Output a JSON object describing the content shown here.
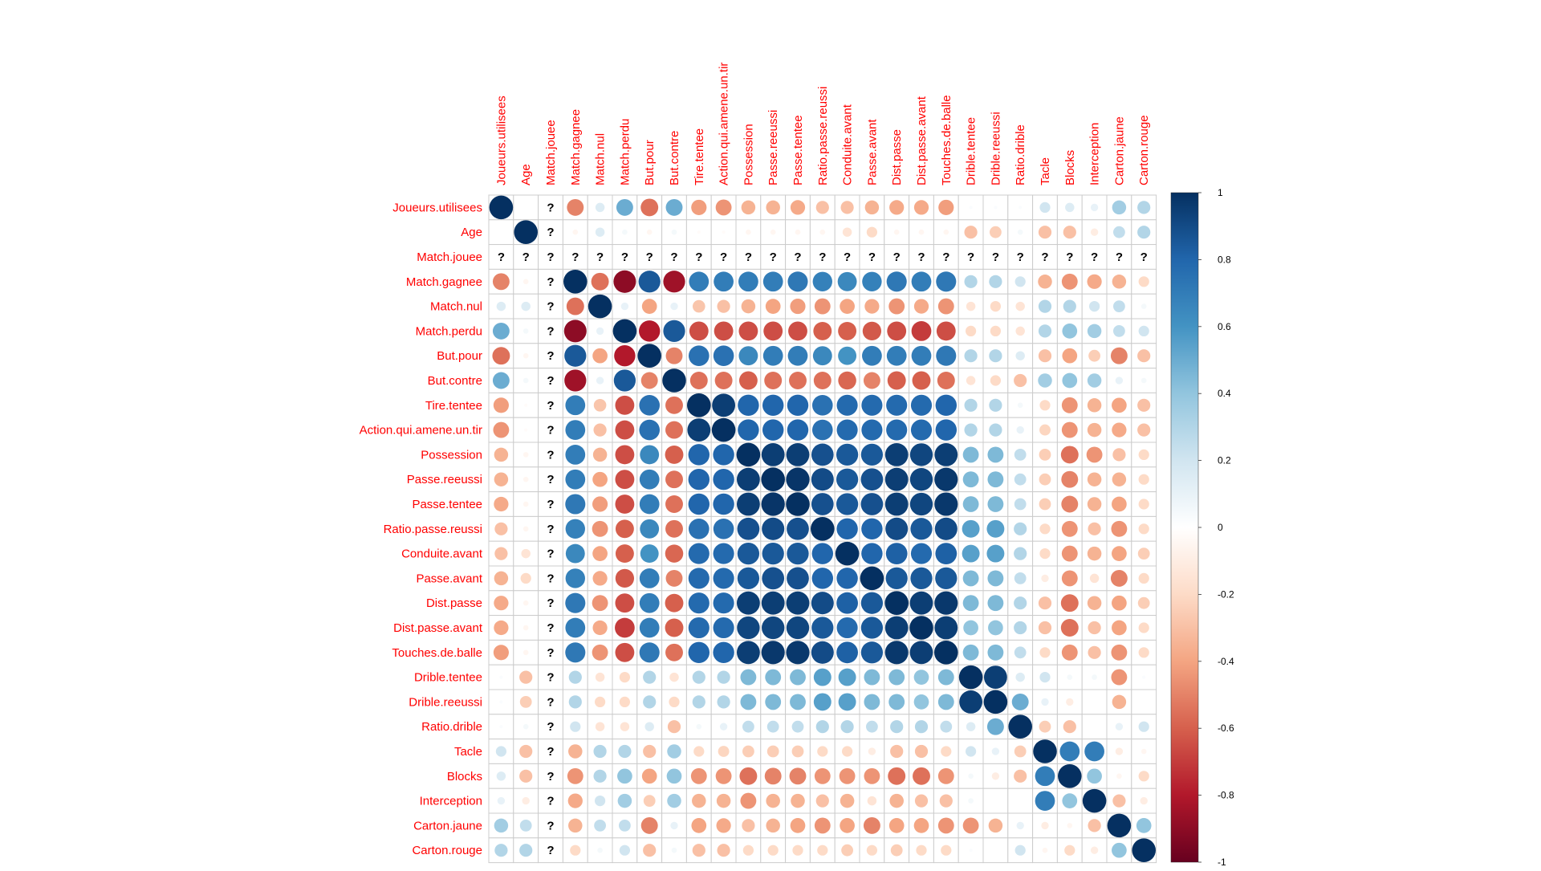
{
  "chart_data": {
    "type": "heatmap",
    "subtype": "correlation-circle-matrix",
    "variables": [
      "Joueurs.utilisees",
      "Age",
      "Match.jouee",
      "Match.gagnee",
      "Match.nul",
      "Match.perdu",
      "But.pour",
      "But.contre",
      "Tire.tentee",
      "Action.qui.amene.un.tir",
      "Possession",
      "Passe.reeussi",
      "Passe.tentee",
      "Ratio.passe.reussi",
      "Conduite.avant",
      "Passe.avant",
      "Dist.passe",
      "Dist.passe.avant",
      "Touches.de.balle",
      "Drible.tentee",
      "Drible.reeussi",
      "Ratio.drible",
      "Tacle",
      "Blocks",
      "Interception",
      "Carton.jaune",
      "Carton.rouge"
    ],
    "undefined_variable": "Match.jouee",
    "undefined_marker": "?",
    "color_scale": {
      "min": -1,
      "max": 1,
      "ticks": [
        "1",
        "0.8",
        "0.6",
        "0.4",
        "0.2",
        "0",
        "-0.2",
        "-0.4",
        "-0.6",
        "-0.8",
        "-1"
      ],
      "stops": [
        "#67001f",
        "#b2182b",
        "#d6604d",
        "#f4a582",
        "#fddbc7",
        "#ffffff",
        "#d1e5f0",
        "#92c5de",
        "#4393c3",
        "#2166ac",
        "#053061"
      ]
    },
    "label_color": "#ff0000",
    "grid_color": "#cccccc",
    "matrix": [
      [
        1,
        0,
        null,
        -0.5,
        0.15,
        0.5,
        -0.55,
        0.5,
        -0.42,
        -0.45,
        -0.35,
        -0.35,
        -0.38,
        -0.3,
        -0.3,
        -0.35,
        -0.38,
        -0.38,
        -0.42,
        0.02,
        0.02,
        0.02,
        0.2,
        0.15,
        0.1,
        0.35,
        0.3
      ],
      [
        0,
        1,
        null,
        -0.05,
        0.15,
        0.05,
        -0.05,
        0.05,
        -0.02,
        -0.02,
        -0.05,
        -0.05,
        -0.05,
        -0.05,
        -0.15,
        -0.2,
        -0.05,
        -0.05,
        -0.05,
        -0.3,
        -0.25,
        0.05,
        -0.3,
        -0.3,
        -0.1,
        0.25,
        0.3
      ],
      [
        null,
        null,
        null,
        null,
        null,
        null,
        null,
        null,
        null,
        null,
        null,
        null,
        null,
        null,
        null,
        null,
        null,
        null,
        null,
        null,
        null,
        null,
        null,
        null,
        null,
        null,
        null
      ],
      [
        -0.5,
        -0.05,
        null,
        1,
        -0.55,
        -0.9,
        0.85,
        -0.85,
        0.7,
        0.7,
        0.7,
        0.7,
        0.72,
        0.68,
        0.65,
        0.68,
        0.72,
        0.7,
        0.72,
        0.3,
        0.3,
        0.2,
        -0.35,
        -0.45,
        -0.38,
        -0.35,
        -0.2
      ],
      [
        0.15,
        0.15,
        null,
        -0.55,
        1,
        0.1,
        -0.4,
        0.1,
        -0.28,
        -0.3,
        -0.35,
        -0.4,
        -0.42,
        -0.45,
        -0.4,
        -0.38,
        -0.45,
        -0.38,
        -0.45,
        -0.15,
        -0.2,
        -0.15,
        0.3,
        0.3,
        0.2,
        0.25,
        0.05
      ],
      [
        0.5,
        0.05,
        null,
        -0.9,
        0.1,
        1,
        -0.8,
        0.85,
        -0.65,
        -0.65,
        -0.65,
        -0.65,
        -0.65,
        -0.6,
        -0.6,
        -0.62,
        -0.65,
        -0.7,
        -0.65,
        -0.2,
        -0.2,
        -0.15,
        0.3,
        0.4,
        0.35,
        0.25,
        0.2
      ],
      [
        -0.55,
        -0.05,
        null,
        0.85,
        -0.4,
        -0.8,
        1,
        -0.5,
        0.75,
        0.75,
        0.65,
        0.7,
        0.7,
        0.65,
        0.6,
        0.7,
        0.7,
        0.7,
        0.72,
        0.3,
        0.3,
        0.15,
        -0.3,
        -0.4,
        -0.25,
        -0.5,
        -0.3
      ],
      [
        0.5,
        0.05,
        null,
        -0.85,
        0.1,
        0.85,
        -0.5,
        1,
        -0.55,
        -0.55,
        -0.6,
        -0.55,
        -0.55,
        -0.55,
        -0.58,
        -0.5,
        -0.6,
        -0.6,
        -0.55,
        -0.15,
        -0.2,
        -0.3,
        0.35,
        0.4,
        0.35,
        0.1,
        0.05
      ],
      [
        -0.42,
        -0.02,
        null,
        0.7,
        -0.28,
        -0.65,
        0.75,
        -0.55,
        1,
        0.95,
        0.8,
        0.8,
        0.8,
        0.75,
        0.78,
        0.78,
        0.78,
        0.78,
        0.8,
        0.3,
        0.3,
        0.05,
        -0.2,
        -0.45,
        -0.35,
        -0.4,
        -0.3
      ],
      [
        -0.45,
        -0.02,
        null,
        0.7,
        -0.3,
        -0.65,
        0.75,
        -0.55,
        0.95,
        1,
        0.8,
        0.8,
        0.8,
        0.75,
        0.78,
        0.78,
        0.78,
        0.78,
        0.8,
        0.3,
        0.3,
        0.1,
        -0.22,
        -0.45,
        -0.35,
        -0.38,
        -0.3
      ],
      [
        -0.35,
        -0.05,
        null,
        0.7,
        -0.35,
        -0.65,
        0.65,
        -0.6,
        0.8,
        0.8,
        1,
        0.95,
        0.95,
        0.88,
        0.85,
        0.85,
        0.95,
        0.92,
        0.95,
        0.45,
        0.45,
        0.25,
        -0.25,
        -0.55,
        -0.45,
        -0.3,
        -0.2
      ],
      [
        -0.35,
        -0.05,
        null,
        0.7,
        -0.4,
        -0.65,
        0.7,
        -0.55,
        0.8,
        0.8,
        0.95,
        1,
        0.98,
        0.9,
        0.85,
        0.88,
        0.95,
        0.92,
        0.97,
        0.45,
        0.45,
        0.25,
        -0.25,
        -0.5,
        -0.35,
        -0.35,
        -0.2
      ],
      [
        -0.38,
        -0.05,
        null,
        0.72,
        -0.42,
        -0.65,
        0.7,
        -0.55,
        0.8,
        0.8,
        0.95,
        0.98,
        1,
        0.88,
        0.85,
        0.88,
        0.95,
        0.92,
        0.97,
        0.45,
        0.45,
        0.25,
        -0.25,
        -0.5,
        -0.35,
        -0.4,
        -0.2
      ],
      [
        -0.3,
        -0.05,
        null,
        0.68,
        -0.45,
        -0.6,
        0.65,
        -0.55,
        0.75,
        0.75,
        0.88,
        0.9,
        0.88,
        1,
        0.8,
        0.8,
        0.9,
        0.85,
        0.9,
        0.55,
        0.55,
        0.3,
        -0.2,
        -0.45,
        -0.3,
        -0.45,
        -0.2
      ],
      [
        -0.3,
        -0.15,
        null,
        0.65,
        -0.4,
        -0.6,
        0.6,
        -0.58,
        0.78,
        0.78,
        0.85,
        0.85,
        0.85,
        0.8,
        1,
        0.8,
        0.82,
        0.78,
        0.82,
        0.55,
        0.55,
        0.3,
        -0.2,
        -0.45,
        -0.35,
        -0.4,
        -0.25
      ],
      [
        -0.35,
        -0.2,
        null,
        0.68,
        -0.38,
        -0.62,
        0.7,
        -0.5,
        0.78,
        0.78,
        0.85,
        0.88,
        0.88,
        0.8,
        0.8,
        1,
        0.85,
        0.85,
        0.85,
        0.45,
        0.45,
        0.25,
        -0.1,
        -0.45,
        -0.15,
        -0.5,
        -0.2
      ],
      [
        -0.38,
        -0.05,
        null,
        0.72,
        -0.45,
        -0.65,
        0.7,
        -0.6,
        0.78,
        0.78,
        0.95,
        0.95,
        0.95,
        0.9,
        0.82,
        0.85,
        1,
        0.95,
        0.97,
        0.45,
        0.45,
        0.3,
        -0.3,
        -0.55,
        -0.35,
        -0.4,
        -0.25
      ],
      [
        -0.38,
        -0.05,
        null,
        0.7,
        -0.38,
        -0.7,
        0.7,
        -0.6,
        0.78,
        0.78,
        0.92,
        0.92,
        0.92,
        0.85,
        0.78,
        0.85,
        0.95,
        1,
        0.95,
        0.4,
        0.4,
        0.3,
        -0.3,
        -0.55,
        -0.3,
        -0.4,
        -0.2
      ],
      [
        -0.42,
        -0.05,
        null,
        0.72,
        -0.45,
        -0.65,
        0.72,
        -0.55,
        0.8,
        0.8,
        0.95,
        0.97,
        0.97,
        0.9,
        0.82,
        0.85,
        0.97,
        0.95,
        1,
        0.45,
        0.45,
        0.25,
        -0.2,
        -0.45,
        -0.3,
        -0.45,
        -0.2
      ],
      [
        0.02,
        -0.3,
        null,
        0.3,
        -0.15,
        -0.2,
        0.3,
        -0.15,
        0.3,
        0.3,
        0.45,
        0.45,
        0.45,
        0.55,
        0.55,
        0.45,
        0.45,
        0.4,
        0.45,
        1,
        0.95,
        0.15,
        0.2,
        0.05,
        0.05,
        -0.45,
        0.02
      ],
      [
        0.02,
        -0.25,
        null,
        0.3,
        -0.2,
        -0.2,
        0.3,
        -0.2,
        0.3,
        0.3,
        0.45,
        0.45,
        0.45,
        0.55,
        0.55,
        0.45,
        0.45,
        0.4,
        0.45,
        0.95,
        1,
        0.5,
        0.1,
        -0.1,
        0,
        -0.35,
        0
      ],
      [
        0.02,
        0.05,
        null,
        0.2,
        -0.15,
        -0.15,
        0.15,
        -0.3,
        0.05,
        0.1,
        0.25,
        0.25,
        0.25,
        0.3,
        0.3,
        0.25,
        0.3,
        0.3,
        0.25,
        0.15,
        0.5,
        1,
        -0.25,
        -0.3,
        0,
        0.1,
        0.2
      ],
      [
        0.2,
        -0.3,
        null,
        -0.35,
        0.3,
        0.3,
        -0.3,
        0.35,
        -0.2,
        -0.22,
        -0.25,
        -0.25,
        -0.25,
        -0.2,
        -0.2,
        -0.1,
        -0.3,
        -0.3,
        -0.2,
        0.2,
        0.1,
        -0.25,
        1,
        0.7,
        0.7,
        -0.1,
        -0.05
      ],
      [
        0.15,
        -0.3,
        null,
        -0.45,
        0.3,
        0.4,
        -0.4,
        0.4,
        -0.45,
        -0.45,
        -0.55,
        -0.5,
        -0.5,
        -0.45,
        -0.45,
        -0.45,
        -0.55,
        -0.55,
        -0.45,
        0.05,
        -0.1,
        -0.3,
        0.7,
        1,
        0.4,
        -0.05,
        -0.2
      ],
      [
        0.1,
        -0.1,
        null,
        -0.38,
        0.2,
        0.35,
        -0.25,
        0.35,
        -0.35,
        -0.35,
        -0.45,
        -0.35,
        -0.35,
        -0.3,
        -0.35,
        -0.15,
        -0.35,
        -0.3,
        -0.3,
        0.05,
        0,
        0,
        0.7,
        0.4,
        1,
        -0.3,
        -0.1
      ],
      [
        0.35,
        0.25,
        null,
        -0.35,
        0.25,
        0.25,
        -0.5,
        0.1,
        -0.4,
        -0.38,
        -0.3,
        -0.35,
        -0.4,
        -0.45,
        -0.4,
        -0.5,
        -0.4,
        -0.4,
        -0.45,
        -0.45,
        -0.35,
        0.1,
        -0.1,
        -0.05,
        -0.3,
        1,
        0.4
      ],
      [
        0.3,
        0.3,
        null,
        -0.2,
        0.05,
        0.2,
        -0.3,
        0.05,
        -0.3,
        -0.3,
        -0.2,
        -0.2,
        -0.2,
        -0.2,
        -0.25,
        -0.2,
        -0.25,
        -0.2,
        -0.2,
        0.02,
        0,
        0.2,
        -0.05,
        -0.2,
        -0.1,
        0.4,
        1
      ]
    ]
  }
}
